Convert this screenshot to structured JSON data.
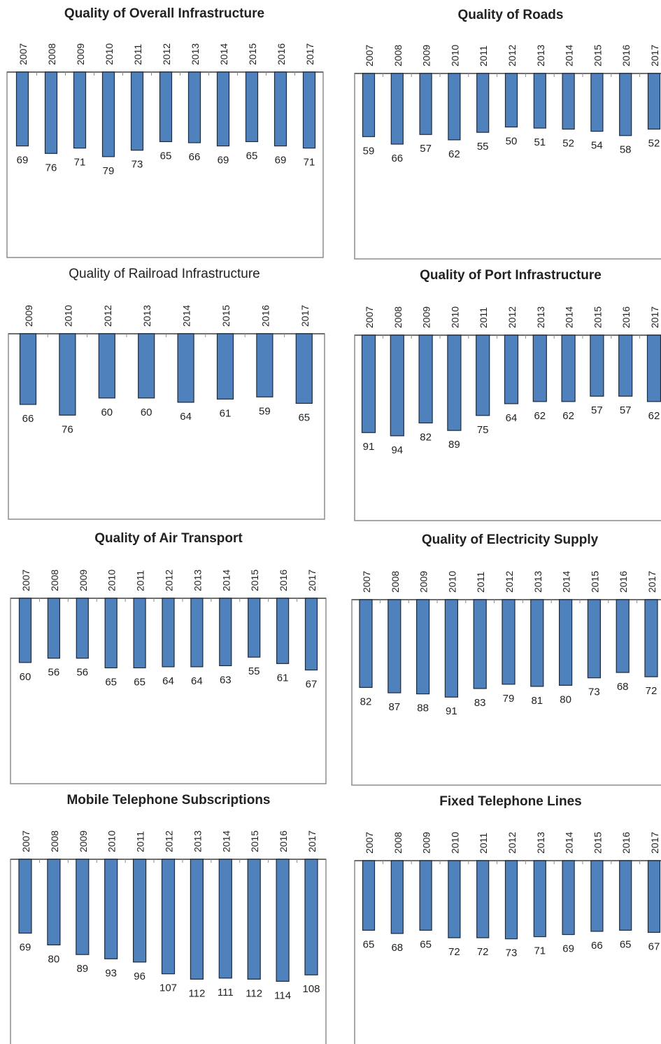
{
  "chart_data": [
    {
      "type": "bar",
      "title": "Quality of Overall Infrastructure",
      "title_bold": true,
      "categories": [
        "2007",
        "2008",
        "2009",
        "2010",
        "2011",
        "2012",
        "2013",
        "2014",
        "2015",
        "2016",
        "2017"
      ],
      "values": [
        69,
        76,
        71,
        79,
        73,
        65,
        66,
        69,
        65,
        69,
        71
      ],
      "ylim": [
        0,
        160
      ],
      "inverted": true
    },
    {
      "type": "bar",
      "title": "Quality of Roads",
      "title_bold": true,
      "categories": [
        "2007",
        "2008",
        "2009",
        "2010",
        "2011",
        "2012",
        "2013",
        "2014",
        "2015",
        "2016",
        "2017"
      ],
      "values": [
        59,
        66,
        57,
        62,
        55,
        50,
        51,
        52,
        54,
        58,
        52
      ],
      "ylim": [
        0,
        160
      ],
      "inverted": true
    },
    {
      "type": "bar",
      "title": "Quality of Railroad Infrastructure",
      "title_bold": false,
      "categories": [
        "2009",
        "2010",
        "2012",
        "2013",
        "2014",
        "2015",
        "2016",
        "2017"
      ],
      "values": [
        66,
        76,
        60,
        60,
        64,
        61,
        59,
        65
      ],
      "ylim": [
        0,
        160
      ],
      "inverted": true
    },
    {
      "type": "bar",
      "title": "Quality of Port Infrastructure",
      "title_bold": true,
      "categories": [
        "2007",
        "2008",
        "2009",
        "2010",
        "2011",
        "2012",
        "2013",
        "2014",
        "2015",
        "2016",
        "2017"
      ],
      "values": [
        91,
        94,
        82,
        89,
        75,
        64,
        62,
        62,
        57,
        57,
        62
      ],
      "ylim": [
        0,
        160
      ],
      "inverted": true
    },
    {
      "type": "bar",
      "title": "Quality of Air Transport",
      "title_bold": true,
      "categories": [
        "2007",
        "2008",
        "2009",
        "2010",
        "2011",
        "2012",
        "2013",
        "2014",
        "2015",
        "2016",
        "2017"
      ],
      "values": [
        60,
        56,
        56,
        65,
        65,
        64,
        64,
        63,
        55,
        61,
        67
      ],
      "ylim": [
        0,
        160
      ],
      "inverted": true
    },
    {
      "type": "bar",
      "title": "Quality of Electricity Supply",
      "title_bold": true,
      "categories": [
        "2007",
        "2008",
        "2009",
        "2010",
        "2011",
        "2012",
        "2013",
        "2014",
        "2015",
        "2016",
        "2017"
      ],
      "values": [
        82,
        87,
        88,
        91,
        83,
        79,
        81,
        80,
        73,
        68,
        72
      ],
      "ylim": [
        0,
        160
      ],
      "inverted": true
    },
    {
      "type": "bar",
      "title": "Mobile Telephone Subscriptions",
      "title_bold": true,
      "categories": [
        "2007",
        "2008",
        "2009",
        "2010",
        "2011",
        "2012",
        "2013",
        "2014",
        "2015",
        "2016",
        "2017"
      ],
      "values": [
        69,
        80,
        89,
        93,
        96,
        107,
        112,
        111,
        112,
        114,
        108
      ],
      "ylim": [
        0,
        160
      ],
      "inverted": true
    },
    {
      "type": "bar",
      "title": "Fixed Telephone Lines",
      "title_bold": true,
      "categories": [
        "2007",
        "2008",
        "2009",
        "2010",
        "2011",
        "2012",
        "2013",
        "2014",
        "2015",
        "2016",
        "2017"
      ],
      "values": [
        65,
        68,
        65,
        72,
        72,
        73,
        71,
        69,
        66,
        65,
        67
      ],
      "ylim": [
        0,
        160
      ],
      "inverted": true
    }
  ],
  "colors": {
    "bar_fill": "#4f81bd",
    "bar_stroke": "#1f2a3a",
    "frame": "#8c8c8c"
  }
}
